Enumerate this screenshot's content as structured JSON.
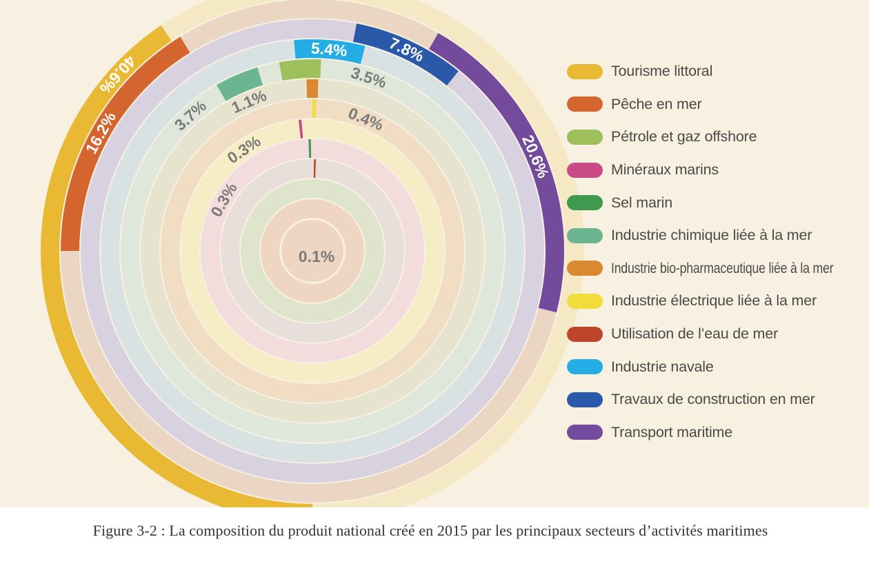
{
  "chart_data": {
    "type": "radial-bar",
    "caption": "Figure 3-2 : La composition du produit national créé en 2015 par les principaux secteurs d’activités maritimes",
    "unit": "%",
    "legend_position": "right",
    "series": [
      {
        "name": "Tourisme littoral",
        "value": 40.6,
        "label": "40.6%",
        "color": "#e9b933",
        "track": "#f5e8c5",
        "label_color": "#ffffff"
      },
      {
        "name": "Pêche en mer",
        "value": 16.2,
        "label": "16.2%",
        "color": "#d4652f",
        "track": "#e3d6da",
        "label_color": "#ffffff"
      },
      {
        "name": "Pétrole et gaz offshore",
        "value": 3.5,
        "label": "3.5%",
        "color": "#9dc05c",
        "track": "#e9ddd0",
        "label_color": "#7a7a7a"
      },
      {
        "name": "Minéraux marins",
        "value": 0.3,
        "label": "0.3%",
        "color": "#c94a86",
        "track": "#f2dcdc",
        "label_color": "#7a7a7a"
      },
      {
        "name": "Sel marin",
        "value": 0.3,
        "label": "0.3%",
        "color": "#3e9a4e",
        "track": "#dee5cc",
        "label_color": "#7a7a7a"
      },
      {
        "name": "Industrie chimique liée à la mer",
        "value": 3.7,
        "label": "3.7%",
        "color": "#6bb592",
        "track": "#dfe7da",
        "label_color": "#7a7a7a"
      },
      {
        "name": "Industrie bio-pharmaceutique liée à la mer",
        "value": 1.1,
        "label": "1.1%",
        "color": "#d9892f",
        "track": "#f1dcc4",
        "label_color": "#7a7a7a"
      },
      {
        "name": "Industrie électrique liée à la mer",
        "value": 0.4,
        "label": "0.4%",
        "color": "#f2dc3c",
        "track": "#f6ecc6",
        "label_color": "#7a7a7a"
      },
      {
        "name": "Utilisation de l’eau de mer",
        "value": 0.1,
        "label": "0.1%",
        "color": "#c0432b",
        "track": "#efd6c2",
        "label_color": "#7a7a7a"
      },
      {
        "name": "Industrie navale",
        "value": 5.4,
        "label": "5.4%",
        "color": "#23ade4",
        "track": "#d9e2e2",
        "label_color": "#ffffff"
      },
      {
        "name": "Travaux de construction en mer",
        "value": 7.8,
        "label": "7.8%",
        "color": "#2b59aa",
        "track": "#d8d1df",
        "label_color": "#ffffff"
      },
      {
        "name": "Transport maritime",
        "value": 20.6,
        "label": "20.6%",
        "color": "#744b9c",
        "track": "#ead6c2",
        "label_color": "#ffffff"
      }
    ]
  }
}
